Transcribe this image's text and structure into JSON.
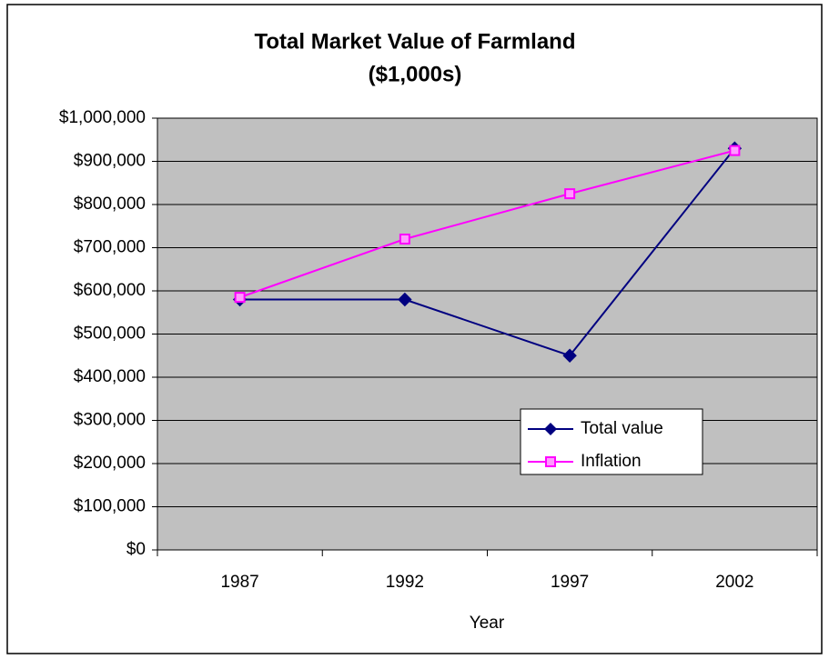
{
  "chart_data": {
    "type": "line",
    "title": [
      "Total Market Value of Farmland",
      "($1,000s)"
    ],
    "x_label": "Year",
    "categories": [
      "1987",
      "1992",
      "1997",
      "2002"
    ],
    "series": [
      {
        "name": "Total value",
        "color": "#000080",
        "marker": "diamond",
        "values": [
          580000,
          580000,
          450000,
          930000
        ]
      },
      {
        "name": "Inflation",
        "color": "#ff00ff",
        "marker": "square",
        "values": [
          585000,
          720000,
          825000,
          925000
        ]
      }
    ],
    "ylim": [
      0,
      1000000
    ],
    "yticks": [
      {
        "value": 0,
        "label": "$0"
      },
      {
        "value": 100000,
        "label": "$100,000"
      },
      {
        "value": 200000,
        "label": "$200,000"
      },
      {
        "value": 300000,
        "label": "$300,000"
      },
      {
        "value": 400000,
        "label": "$400,000"
      },
      {
        "value": 500000,
        "label": "$500,000"
      },
      {
        "value": 600000,
        "label": "$600,000"
      },
      {
        "value": 700000,
        "label": "$700,000"
      },
      {
        "value": 800000,
        "label": "$800,000"
      },
      {
        "value": 900000,
        "label": "$900,000"
      },
      {
        "value": 1000000,
        "label": "$1,000,000"
      }
    ],
    "grid": true,
    "legend_position": "lower right"
  }
}
